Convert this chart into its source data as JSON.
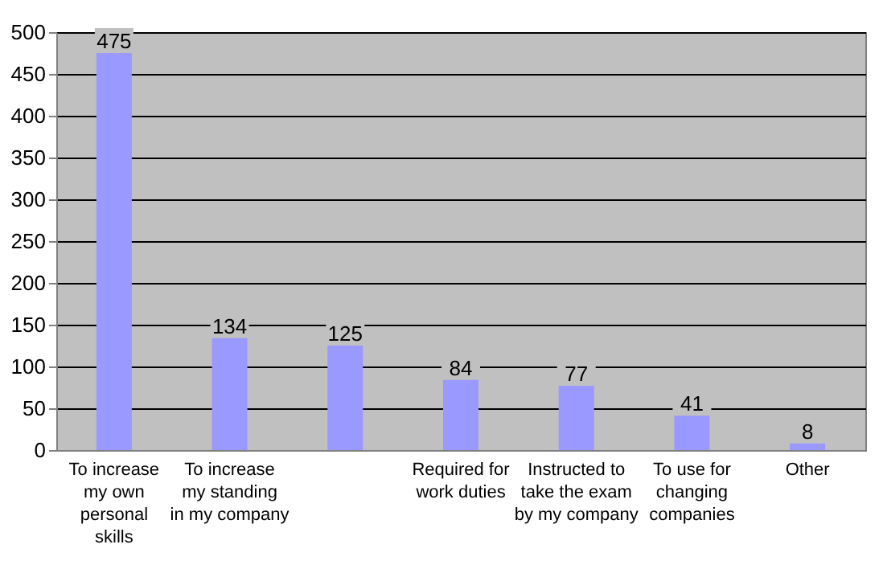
{
  "chart_data": {
    "type": "bar",
    "categories": [
      "To increase my own personal skills",
      "To increase my standing in my company",
      null,
      "Required for work duties",
      "Instructed to take the exam by my company",
      "To use for changing companies",
      "Other"
    ],
    "values": [
      475,
      134,
      125,
      84,
      77,
      41,
      8
    ],
    "color": "#9999ff",
    "ylim": [
      0,
      500
    ],
    "yticks": [
      0,
      50,
      100,
      150,
      200,
      250,
      300,
      350,
      400,
      450,
      500
    ],
    "grid": "y",
    "data_labels": true
  }
}
